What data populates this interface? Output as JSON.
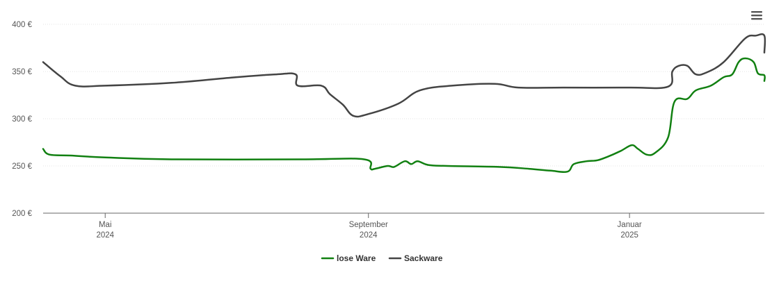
{
  "chart_data": {
    "type": "line",
    "title": "",
    "xlabel": "",
    "ylabel": "",
    "ylim": [
      200,
      400
    ],
    "xlim": [
      "2024-04-02",
      "2025-03-05"
    ],
    "y_ticks": [
      "200 €",
      "250 €",
      "300 €",
      "350 €",
      "400 €"
    ],
    "y_tick_values": [
      200,
      250,
      300,
      350,
      400
    ],
    "x_ticks": [
      {
        "date": "2024-05-01",
        "month": "Mai",
        "year": "2024"
      },
      {
        "date": "2024-09-01",
        "month": "September",
        "year": "2024"
      },
      {
        "date": "2025-01-01",
        "month": "Januar",
        "year": "2025"
      }
    ],
    "grid": "horizontal dotted",
    "legend_position": "bottom-center",
    "series": [
      {
        "name": "lose Ware",
        "color": "#118011",
        "points": [
          [
            "2024-04-02",
            268
          ],
          [
            "2024-04-05",
            262
          ],
          [
            "2024-04-15",
            261
          ],
          [
            "2024-05-01",
            259
          ],
          [
            "2024-06-01",
            257
          ],
          [
            "2024-08-01",
            257
          ],
          [
            "2024-08-30",
            257
          ],
          [
            "2024-09-02",
            247
          ],
          [
            "2024-09-04",
            247
          ],
          [
            "2024-09-10",
            250
          ],
          [
            "2024-09-13",
            249
          ],
          [
            "2024-09-18",
            255
          ],
          [
            "2024-09-21",
            252
          ],
          [
            "2024-09-24",
            255
          ],
          [
            "2024-09-29",
            251
          ],
          [
            "2024-10-08",
            250
          ],
          [
            "2024-11-01",
            249
          ],
          [
            "2024-11-15",
            247
          ],
          [
            "2024-11-25",
            245
          ],
          [
            "2024-12-03",
            244
          ],
          [
            "2024-12-06",
            252
          ],
          [
            "2024-12-12",
            255
          ],
          [
            "2024-12-17",
            256
          ],
          [
            "2024-12-22",
            260
          ],
          [
            "2024-12-28",
            266
          ],
          [
            "2025-01-02",
            272
          ],
          [
            "2025-01-05",
            268
          ],
          [
            "2025-01-09",
            262
          ],
          [
            "2025-01-13",
            264
          ],
          [
            "2025-01-19",
            280
          ],
          [
            "2025-01-22",
            318
          ],
          [
            "2025-01-28",
            321
          ],
          [
            "2025-02-01",
            330
          ],
          [
            "2025-02-08",
            335
          ],
          [
            "2025-02-14",
            344
          ],
          [
            "2025-02-18",
            347
          ],
          [
            "2025-02-21",
            360
          ],
          [
            "2025-02-24",
            364
          ],
          [
            "2025-02-28",
            360
          ],
          [
            "2025-03-02",
            348
          ],
          [
            "2025-03-05",
            346
          ],
          [
            "2025-03-05",
            340
          ]
        ]
      },
      {
        "name": "Sackware",
        "color": "#444444",
        "points": [
          [
            "2024-04-02",
            360
          ],
          [
            "2024-04-10",
            345
          ],
          [
            "2024-04-17",
            335
          ],
          [
            "2024-05-01",
            335
          ],
          [
            "2024-06-01",
            338
          ],
          [
            "2024-07-01",
            344
          ],
          [
            "2024-07-20",
            347
          ],
          [
            "2024-07-29",
            347
          ],
          [
            "2024-07-30",
            335
          ],
          [
            "2024-08-10",
            335
          ],
          [
            "2024-08-14",
            326
          ],
          [
            "2024-08-20",
            315
          ],
          [
            "2024-08-25",
            303
          ],
          [
            "2024-09-01",
            305
          ],
          [
            "2024-09-15",
            316
          ],
          [
            "2024-09-25",
            330
          ],
          [
            "2024-10-10",
            335
          ],
          [
            "2024-10-30",
            337
          ],
          [
            "2024-11-10",
            333
          ],
          [
            "2024-12-01",
            333
          ],
          [
            "2025-01-01",
            333
          ],
          [
            "2025-01-19",
            334
          ],
          [
            "2025-01-21",
            350
          ],
          [
            "2025-01-24",
            356
          ],
          [
            "2025-01-28",
            356
          ],
          [
            "2025-02-01",
            347
          ],
          [
            "2025-02-06",
            349
          ],
          [
            "2025-02-14",
            360
          ],
          [
            "2025-02-24",
            385
          ],
          [
            "2025-03-01",
            388
          ],
          [
            "2025-03-05",
            388
          ],
          [
            "2025-03-05",
            370
          ]
        ]
      }
    ]
  }
}
